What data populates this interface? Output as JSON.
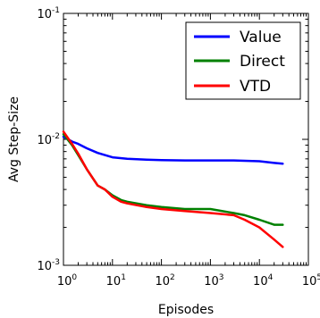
{
  "chart_data": {
    "type": "line",
    "xlabel": "Episodes",
    "ylabel": "Avg Step-Size",
    "xscale": "log",
    "yscale": "log",
    "xlim": [
      1,
      100000
    ],
    "ylim": [
      0.001,
      0.1
    ],
    "x_ticks": [
      {
        "base": "10",
        "exp": "0"
      },
      {
        "base": "10",
        "exp": "1"
      },
      {
        "base": "10",
        "exp": "2"
      },
      {
        "base": "10",
        "exp": "3"
      },
      {
        "base": "10",
        "exp": "4"
      },
      {
        "base": "10",
        "exp": "5"
      }
    ],
    "y_ticks": [
      {
        "base": "10",
        "exp": "-3"
      },
      {
        "base": "10",
        "exp": "-2"
      },
      {
        "base": "10",
        "exp": "-1"
      }
    ],
    "legend_position": "top-right",
    "series": [
      {
        "name": "Value",
        "color": "#0000ff",
        "x": [
          1,
          1.5,
          2,
          3,
          5,
          7,
          10,
          20,
          50,
          100,
          300,
          1000,
          3000,
          10000,
          20000,
          30000
        ],
        "y": [
          0.0105,
          0.0096,
          0.0092,
          0.0085,
          0.0078,
          0.0075,
          0.0072,
          0.007,
          0.0069,
          0.00685,
          0.0068,
          0.0068,
          0.0068,
          0.0067,
          0.0065,
          0.0064
        ]
      },
      {
        "name": "Direct",
        "color": "#008000",
        "x": [
          1,
          1.5,
          2,
          3,
          5,
          7,
          10,
          15,
          20,
          50,
          100,
          300,
          1000,
          3000,
          5000,
          10000,
          20000,
          30000
        ],
        "y": [
          0.011,
          0.009,
          0.0075,
          0.0058,
          0.0043,
          0.004,
          0.0036,
          0.0033,
          0.0032,
          0.003,
          0.0029,
          0.0028,
          0.0028,
          0.0026,
          0.0025,
          0.0023,
          0.0021,
          0.0021
        ]
      },
      {
        "name": "VTD",
        "color": "#ff0000",
        "x": [
          1,
          1.5,
          2,
          3,
          5,
          7,
          10,
          15,
          20,
          50,
          100,
          300,
          1000,
          3000,
          5000,
          10000,
          20000,
          30000
        ],
        "y": [
          0.0115,
          0.0092,
          0.0077,
          0.0058,
          0.0043,
          0.004,
          0.0035,
          0.0032,
          0.0031,
          0.0029,
          0.0028,
          0.0027,
          0.0026,
          0.0025,
          0.0023,
          0.002,
          0.0016,
          0.0014
        ]
      }
    ]
  }
}
